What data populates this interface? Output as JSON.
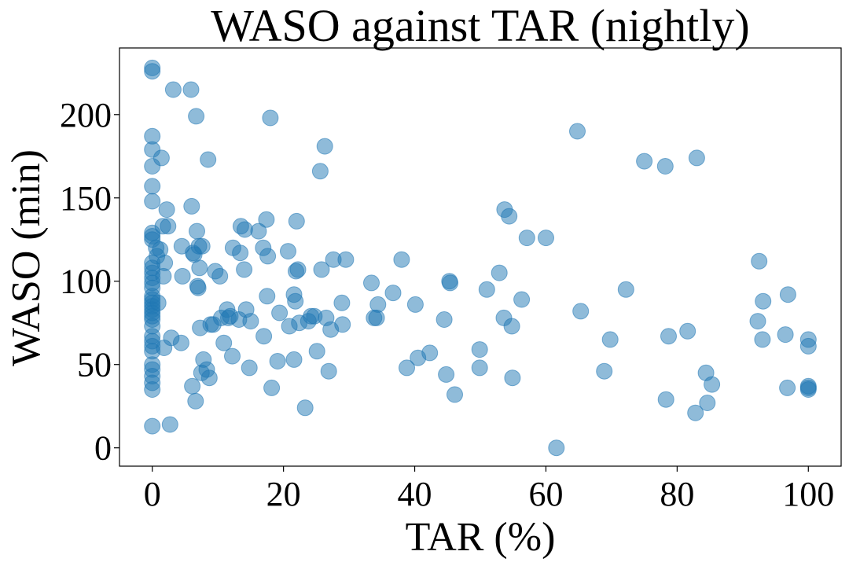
{
  "chart_data": {
    "type": "scatter",
    "title": "WASO against TAR (nightly)",
    "xlabel": "TAR (%)",
    "ylabel": "WASO (min)",
    "xlim": [
      -5,
      105
    ],
    "ylim": [
      -11,
      240
    ],
    "xticks": [
      0,
      20,
      40,
      60,
      80,
      100
    ],
    "yticks": [
      0,
      50,
      100,
      150,
      200
    ],
    "grid": false,
    "color": "#1f77b4",
    "points": [
      [
        0,
        228
      ],
      [
        0,
        226
      ],
      [
        0,
        187
      ],
      [
        0,
        179
      ],
      [
        0,
        169
      ],
      [
        0,
        157
      ],
      [
        0,
        148
      ],
      [
        0,
        129
      ],
      [
        0,
        127
      ],
      [
        0,
        125
      ],
      [
        0,
        111
      ],
      [
        0,
        108
      ],
      [
        0,
        105
      ],
      [
        0,
        102
      ],
      [
        0,
        99
      ],
      [
        0,
        96
      ],
      [
        0,
        91
      ],
      [
        0,
        89
      ],
      [
        0,
        87
      ],
      [
        0,
        85
      ],
      [
        0,
        83
      ],
      [
        0,
        81
      ],
      [
        0,
        79
      ],
      [
        0,
        77
      ],
      [
        0,
        73
      ],
      [
        0,
        67
      ],
      [
        0,
        64
      ],
      [
        0,
        61
      ],
      [
        0,
        58
      ],
      [
        0,
        50
      ],
      [
        0,
        47
      ],
      [
        0,
        43
      ],
      [
        0,
        39
      ],
      [
        0,
        35
      ],
      [
        0,
        13
      ],
      [
        0.6,
        120
      ],
      [
        0.7,
        115
      ],
      [
        0.9,
        87
      ],
      [
        1.2,
        119
      ],
      [
        1.4,
        174
      ],
      [
        1.6,
        133
      ],
      [
        1.7,
        103
      ],
      [
        1.8,
        60
      ],
      [
        1.9,
        111
      ],
      [
        2.2,
        143
      ],
      [
        2.4,
        133
      ],
      [
        2.7,
        14
      ],
      [
        2.9,
        66
      ],
      [
        3.2,
        215
      ],
      [
        4.4,
        63
      ],
      [
        4.5,
        121
      ],
      [
        4.6,
        103
      ],
      [
        5.9,
        215
      ],
      [
        6.0,
        145
      ],
      [
        6.1,
        37
      ],
      [
        6.2,
        117
      ],
      [
        6.4,
        116
      ],
      [
        6.6,
        28
      ],
      [
        6.7,
        199
      ],
      [
        6.8,
        130
      ],
      [
        6.9,
        97
      ],
      [
        7.0,
        96
      ],
      [
        7.1,
        121
      ],
      [
        7.2,
        108
      ],
      [
        7.3,
        72
      ],
      [
        7.5,
        45
      ],
      [
        7.6,
        121
      ],
      [
        7.8,
        53
      ],
      [
        8.3,
        47
      ],
      [
        8.5,
        173
      ],
      [
        8.7,
        42
      ],
      [
        8.9,
        74
      ],
      [
        9.3,
        74
      ],
      [
        9.6,
        106
      ],
      [
        10.3,
        103
      ],
      [
        10.5,
        78
      ],
      [
        10.9,
        63
      ],
      [
        11.4,
        83
      ],
      [
        11.6,
        78
      ],
      [
        11.9,
        79
      ],
      [
        12.2,
        55
      ],
      [
        12.3,
        120
      ],
      [
        13.2,
        77
      ],
      [
        13.4,
        117
      ],
      [
        13.5,
        133
      ],
      [
        14.0,
        107
      ],
      [
        14.1,
        131
      ],
      [
        14.3,
        83
      ],
      [
        14.8,
        48
      ],
      [
        15.0,
        76
      ],
      [
        16.2,
        130
      ],
      [
        16.9,
        120
      ],
      [
        17.0,
        67
      ],
      [
        17.4,
        137
      ],
      [
        17.5,
        91
      ],
      [
        17.6,
        115
      ],
      [
        18.0,
        198
      ],
      [
        18.2,
        36
      ],
      [
        19.1,
        52
      ],
      [
        19.4,
        81
      ],
      [
        20.7,
        118
      ],
      [
        20.9,
        73
      ],
      [
        21.6,
        53
      ],
      [
        21.6,
        92
      ],
      [
        21.8,
        88
      ],
      [
        21.9,
        106
      ],
      [
        22.0,
        136
      ],
      [
        22.2,
        107
      ],
      [
        22.4,
        75
      ],
      [
        23.3,
        24
      ],
      [
        23.8,
        76
      ],
      [
        24.2,
        79
      ],
      [
        24.7,
        79
      ],
      [
        25.1,
        58
      ],
      [
        25.6,
        166
      ],
      [
        25.8,
        107
      ],
      [
        26.3,
        181
      ],
      [
        26.5,
        78
      ],
      [
        26.9,
        46
      ],
      [
        27.2,
        71
      ],
      [
        27.6,
        113
      ],
      [
        28.9,
        87
      ],
      [
        29.0,
        74
      ],
      [
        29.5,
        113
      ],
      [
        33.4,
        99
      ],
      [
        33.8,
        78
      ],
      [
        34.2,
        78
      ],
      [
        34.4,
        86
      ],
      [
        36.7,
        93
      ],
      [
        38.0,
        113
      ],
      [
        38.8,
        48
      ],
      [
        40.1,
        86
      ],
      [
        40.5,
        54
      ],
      [
        42.3,
        57
      ],
      [
        44.5,
        77
      ],
      [
        44.8,
        44
      ],
      [
        45.3,
        100
      ],
      [
        45.4,
        99
      ],
      [
        46.1,
        32
      ],
      [
        49.9,
        59
      ],
      [
        49.9,
        48
      ],
      [
        51.0,
        95
      ],
      [
        52.9,
        105
      ],
      [
        53.6,
        78
      ],
      [
        53.7,
        143
      ],
      [
        54.4,
        139
      ],
      [
        54.8,
        73
      ],
      [
        54.9,
        42
      ],
      [
        56.3,
        89
      ],
      [
        57.1,
        126
      ],
      [
        60.0,
        126
      ],
      [
        61.6,
        0
      ],
      [
        64.8,
        190
      ],
      [
        65.3,
        82
      ],
      [
        68.9,
        46
      ],
      [
        69.8,
        65
      ],
      [
        72.2,
        95
      ],
      [
        75.0,
        172
      ],
      [
        78.2,
        169
      ],
      [
        78.3,
        29
      ],
      [
        78.7,
        67
      ],
      [
        81.6,
        70
      ],
      [
        82.8,
        21
      ],
      [
        83.0,
        174
      ],
      [
        84.4,
        45
      ],
      [
        84.6,
        27
      ],
      [
        85.3,
        38
      ],
      [
        92.3,
        76
      ],
      [
        92.5,
        112
      ],
      [
        93.0,
        65
      ],
      [
        93.1,
        88
      ],
      [
        96.5,
        68
      ],
      [
        96.8,
        36
      ],
      [
        96.9,
        92
      ],
      [
        100,
        65
      ],
      [
        100,
        61
      ],
      [
        100,
        37
      ],
      [
        100,
        36
      ],
      [
        100,
        35
      ]
    ]
  }
}
